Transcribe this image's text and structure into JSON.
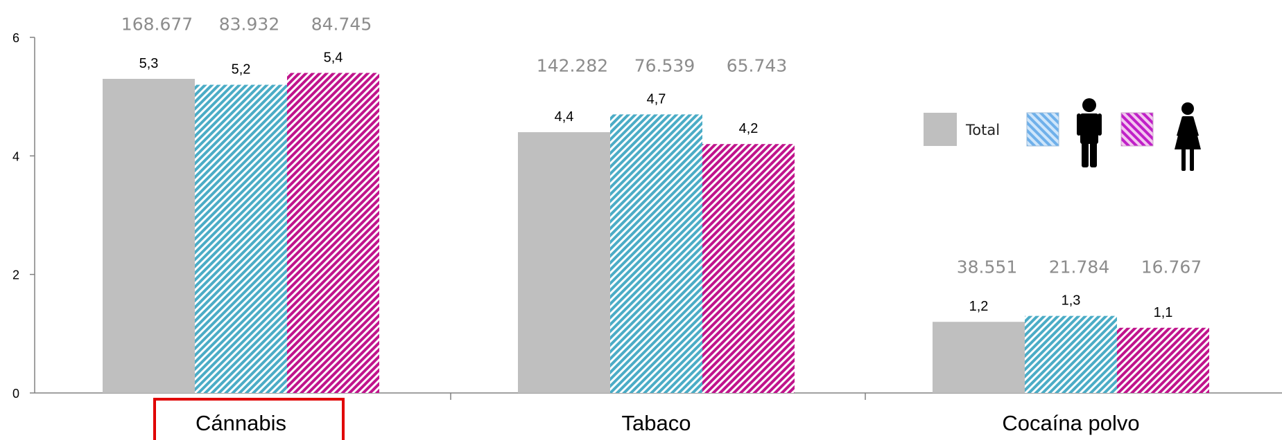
{
  "chart_data": {
    "type": "bar",
    "categories": [
      "Cánnabis",
      "Tabaco",
      "Cocaína polvo"
    ],
    "series": [
      {
        "name": "Total",
        "values": [
          5.3,
          4.4,
          1.2
        ],
        "labels": [
          "5,3",
          "4,4",
          "1,2"
        ],
        "color": "#bfbfbf",
        "pattern": "solid"
      },
      {
        "name": "",
        "legend_icon": "male-icon",
        "values": [
          5.2,
          4.7,
          1.3
        ],
        "labels": [
          "5,2",
          "4,7",
          "1,3"
        ],
        "color": "#4bacc6",
        "pattern": "diagonal-stripes"
      },
      {
        "name": "",
        "legend_icon": "female-icon",
        "values": [
          5.4,
          4.2,
          1.1
        ],
        "labels": [
          "5,4",
          "4,2",
          "1,1"
        ],
        "color": "#c0148c",
        "pattern": "diagonal-stripes"
      }
    ],
    "counts": [
      [
        "168.677",
        "83.932",
        "84.745"
      ],
      [
        "142.282",
        "76.539",
        "65.743"
      ],
      [
        "38.551",
        "21.784",
        "16.767"
      ]
    ],
    "y_ticks": [
      "0",
      "2",
      "4",
      "6"
    ],
    "ylim": [
      0,
      6
    ],
    "grid": false,
    "legend_position": "right",
    "highlighted_category": "Cánnabis",
    "highlight_color": "#e00000",
    "title": "",
    "xlabel": "",
    "ylabel": ""
  }
}
